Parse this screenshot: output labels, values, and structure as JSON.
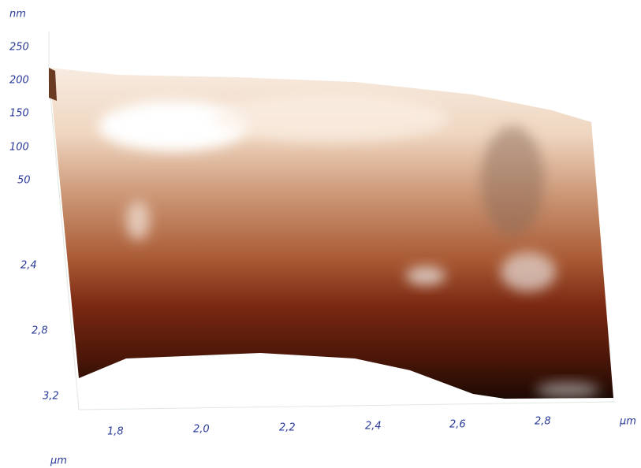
{
  "z_axis": {
    "unit": "nm",
    "ticks": [
      "250",
      "200",
      "150",
      "100",
      "50"
    ]
  },
  "y_axis": {
    "unit": "µm",
    "ticks": [
      "2,4",
      "2,8",
      "3,2"
    ]
  },
  "x_axis": {
    "unit": "µm",
    "ticks": [
      "1,8",
      "2,0",
      "2,2",
      "2,4",
      "2,6",
      "2,8"
    ]
  }
}
